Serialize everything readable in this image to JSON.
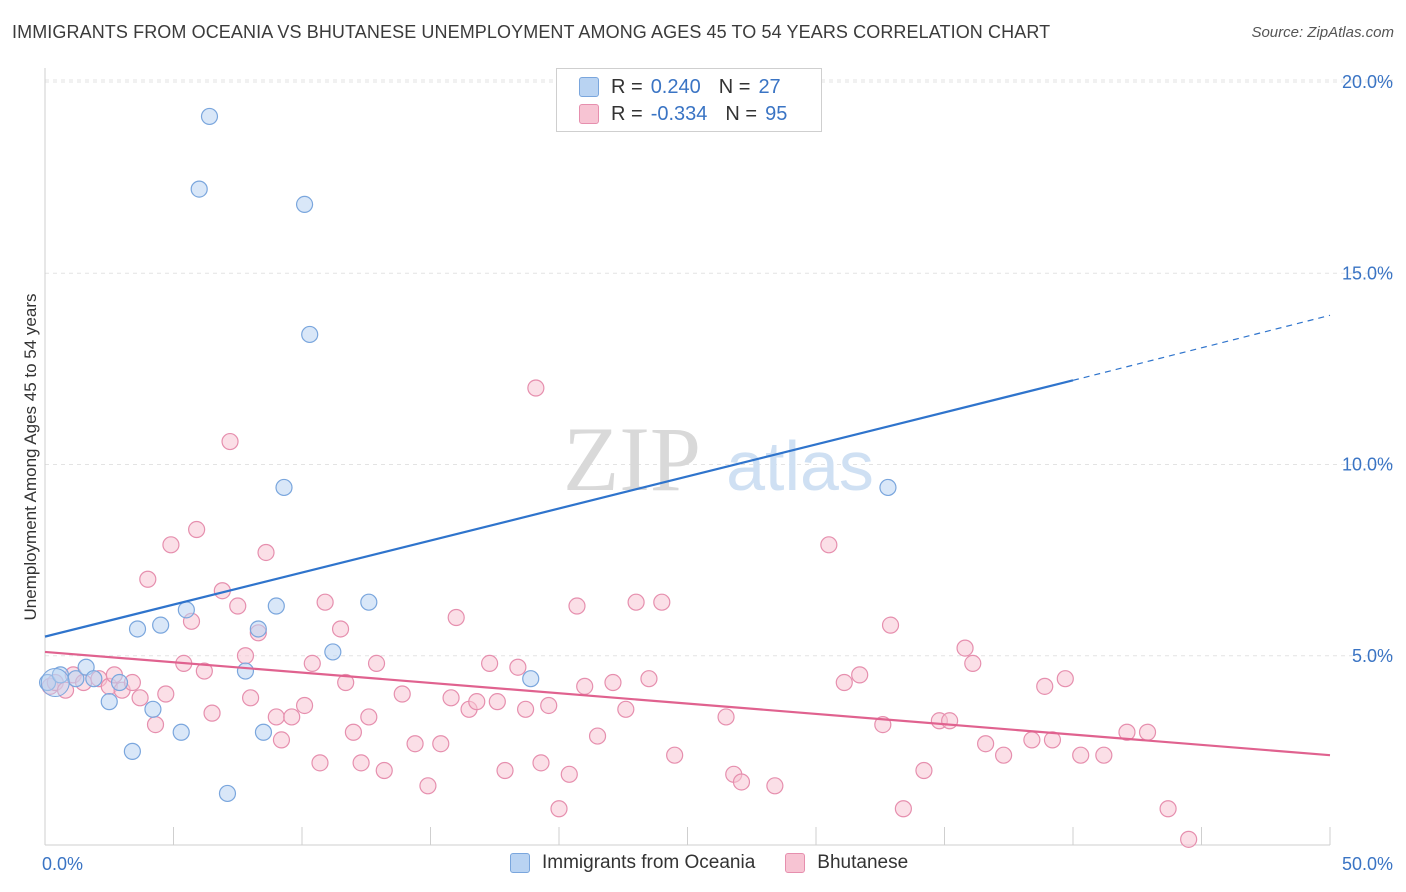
{
  "title": "IMMIGRANTS FROM OCEANIA VS BHUTANESE UNEMPLOYMENT AMONG AGES 45 TO 54 YEARS CORRELATION CHART",
  "source": "Source: ZipAtlas.com",
  "watermark": {
    "zip": "ZIP",
    "atlas": "atlas"
  },
  "legend": {
    "rows": [
      {
        "r_label": "R =",
        "r_value": "0.240",
        "n_label": "N =",
        "n_value": "27"
      },
      {
        "r_label": "R =",
        "r_value": "-0.334",
        "n_label": "N =",
        "n_value": "95"
      }
    ]
  },
  "bottom_legend": {
    "series1": "Immigrants from Oceania",
    "series2": "Bhutanese"
  },
  "colors": {
    "series1_fill": "#b9d3f2",
    "series1_stroke": "#7aa6dd",
    "series1_line": "#2f74cc",
    "series2_fill": "#f7c4d3",
    "series2_stroke": "#e68fae",
    "series2_line": "#e0628f",
    "axis_text": "#3a74c4",
    "grid": "#e3e3e3"
  },
  "chart_data": {
    "type": "scatter",
    "title": "IMMIGRANTS FROM OCEANIA VS BHUTANESE UNEMPLOYMENT AMONG AGES 45 TO 54 YEARS CORRELATION CHART",
    "xlabel": "",
    "ylabel": "Unemployment Among Ages 45 to 54 years",
    "xlim": [
      0,
      50
    ],
    "ylim": [
      0,
      20
    ],
    "x_tick_labels": [
      "0.0%",
      "50.0%"
    ],
    "y_ticks": [
      5,
      10,
      15,
      20
    ],
    "y_tick_labels": [
      "5.0%",
      "10.0%",
      "15.0%",
      "20.0%"
    ],
    "series": [
      {
        "name": "Immigrants from Oceania",
        "points": [
          [
            0.1,
            4.3
          ],
          [
            0.6,
            4.5
          ],
          [
            1.2,
            4.4
          ],
          [
            1.6,
            4.7
          ],
          [
            1.9,
            4.4
          ],
          [
            2.5,
            3.8
          ],
          [
            2.9,
            4.3
          ],
          [
            3.4,
            2.5
          ],
          [
            3.6,
            5.7
          ],
          [
            4.2,
            3.6
          ],
          [
            4.5,
            5.8
          ],
          [
            5.3,
            3.0
          ],
          [
            5.5,
            6.2
          ],
          [
            6.0,
            17.2
          ],
          [
            6.4,
            19.1
          ],
          [
            7.1,
            1.4
          ],
          [
            7.8,
            4.6
          ],
          [
            8.3,
            5.7
          ],
          [
            8.5,
            3.0
          ],
          [
            9.0,
            6.3
          ],
          [
            9.3,
            9.4
          ],
          [
            10.1,
            16.8
          ],
          [
            10.3,
            13.4
          ],
          [
            11.2,
            5.1
          ],
          [
            12.6,
            6.4
          ],
          [
            18.9,
            4.4
          ],
          [
            32.8,
            9.4
          ]
        ],
        "trend": {
          "x0": 0,
          "y0": 5.5,
          "x1": 40,
          "y1": 12.2,
          "dash_x1": 50,
          "dash_y1": 13.9
        }
      },
      {
        "name": "Bhutanese",
        "points": [
          [
            0.2,
            4.2
          ],
          [
            0.4,
            4.3
          ],
          [
            0.8,
            4.1
          ],
          [
            1.1,
            4.5
          ],
          [
            1.5,
            4.3
          ],
          [
            2.1,
            4.4
          ],
          [
            2.5,
            4.2
          ],
          [
            2.7,
            4.5
          ],
          [
            3.0,
            4.1
          ],
          [
            3.4,
            4.3
          ],
          [
            3.7,
            3.9
          ],
          [
            4.0,
            7.0
          ],
          [
            4.3,
            3.2
          ],
          [
            4.7,
            4.0
          ],
          [
            4.9,
            7.9
          ],
          [
            5.4,
            4.8
          ],
          [
            5.7,
            5.9
          ],
          [
            5.9,
            8.3
          ],
          [
            6.2,
            4.6
          ],
          [
            6.5,
            3.5
          ],
          [
            6.9,
            6.7
          ],
          [
            7.2,
            10.6
          ],
          [
            7.5,
            6.3
          ],
          [
            7.8,
            5.0
          ],
          [
            8.0,
            3.9
          ],
          [
            8.3,
            5.6
          ],
          [
            8.6,
            7.7
          ],
          [
            9.0,
            3.4
          ],
          [
            9.2,
            2.8
          ],
          [
            9.6,
            3.4
          ],
          [
            10.1,
            3.7
          ],
          [
            10.4,
            4.8
          ],
          [
            10.7,
            2.2
          ],
          [
            10.9,
            6.4
          ],
          [
            11.5,
            5.7
          ],
          [
            11.7,
            4.3
          ],
          [
            12.0,
            3.0
          ],
          [
            12.3,
            2.2
          ],
          [
            12.6,
            3.4
          ],
          [
            12.9,
            4.8
          ],
          [
            13.2,
            2.0
          ],
          [
            13.9,
            4.0
          ],
          [
            14.4,
            2.7
          ],
          [
            14.9,
            1.6
          ],
          [
            15.4,
            2.7
          ],
          [
            15.8,
            3.9
          ],
          [
            16.0,
            6.0
          ],
          [
            16.5,
            3.6
          ],
          [
            16.8,
            3.8
          ],
          [
            17.3,
            4.8
          ],
          [
            17.6,
            3.8
          ],
          [
            17.9,
            2.0
          ],
          [
            18.4,
            4.7
          ],
          [
            18.7,
            3.6
          ],
          [
            19.1,
            12.0
          ],
          [
            19.3,
            2.2
          ],
          [
            19.6,
            3.7
          ],
          [
            20.0,
            1.0
          ],
          [
            20.4,
            1.9
          ],
          [
            20.7,
            6.3
          ],
          [
            21.0,
            4.2
          ],
          [
            21.5,
            2.9
          ],
          [
            22.1,
            4.3
          ],
          [
            22.6,
            3.6
          ],
          [
            23.0,
            6.4
          ],
          [
            23.5,
            4.4
          ],
          [
            24.0,
            6.4
          ],
          [
            24.5,
            2.4
          ],
          [
            26.5,
            3.4
          ],
          [
            26.8,
            1.9
          ],
          [
            27.1,
            1.7
          ],
          [
            28.4,
            1.6
          ],
          [
            30.5,
            7.9
          ],
          [
            31.1,
            4.3
          ],
          [
            31.7,
            4.5
          ],
          [
            32.6,
            3.2
          ],
          [
            32.9,
            5.8
          ],
          [
            33.4,
            1.0
          ],
          [
            34.2,
            2.0
          ],
          [
            34.8,
            3.3
          ],
          [
            35.2,
            3.3
          ],
          [
            35.8,
            5.2
          ],
          [
            36.1,
            4.8
          ],
          [
            36.6,
            2.7
          ],
          [
            37.3,
            2.4
          ],
          [
            38.4,
            2.8
          ],
          [
            38.9,
            4.2
          ],
          [
            39.2,
            2.8
          ],
          [
            39.7,
            4.4
          ],
          [
            40.3,
            2.4
          ],
          [
            41.2,
            2.4
          ],
          [
            42.1,
            3.0
          ],
          [
            42.9,
            3.0
          ],
          [
            43.7,
            1.0
          ],
          [
            44.5,
            0.2
          ]
        ],
        "trend": {
          "x0": 0,
          "y0": 5.1,
          "x1": 50,
          "y1": 2.4
        }
      }
    ]
  }
}
